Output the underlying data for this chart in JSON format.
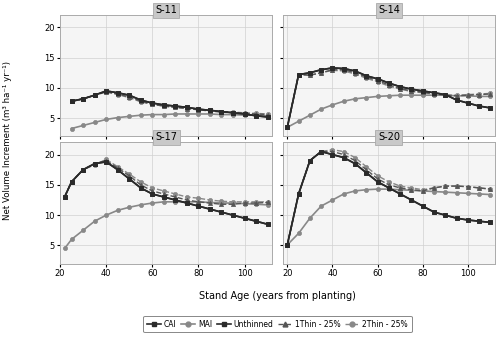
{
  "panels": [
    "S-11",
    "S-14",
    "S-17",
    "S-20"
  ],
  "ylabel": "Net Volume Increment (m³ ha⁻¹ yr⁻¹)",
  "xlabel": "Stand Age (years from planting)",
  "x_ticks": [
    20,
    40,
    60,
    80,
    100
  ],
  "y_ticks": [
    5,
    10,
    15,
    20
  ],
  "background_color": "#ffffff",
  "panel_header_color": "#c8c8c8",
  "S-11": {
    "ylim": [
      2,
      22
    ],
    "xlim": [
      22,
      112
    ],
    "CAI": {
      "x": [
        25,
        30,
        35,
        40,
        45,
        50,
        55,
        60,
        65,
        70,
        75,
        80,
        85,
        90,
        95,
        100,
        105,
        110
      ],
      "y": [
        7.8,
        8.2,
        8.8,
        9.5,
        9.2,
        8.8,
        8.0,
        7.5,
        7.2,
        7.0,
        6.8,
        6.5,
        6.3,
        6.1,
        5.9,
        5.7,
        5.4,
        5.2
      ]
    },
    "MAI": {
      "x": [
        25,
        30,
        35,
        40,
        45,
        50,
        55,
        60,
        65,
        70,
        75,
        80,
        85,
        90,
        95,
        100,
        105,
        110
      ],
      "y": [
        3.3,
        3.8,
        4.3,
        4.8,
        5.1,
        5.3,
        5.5,
        5.6,
        5.6,
        5.7,
        5.7,
        5.7,
        5.7,
        5.6,
        5.6,
        5.5,
        5.5,
        5.4
      ]
    },
    "Unthinned": {
      "x": [
        25,
        30,
        35,
        40,
        45,
        50,
        55,
        60,
        65,
        70,
        75,
        80,
        85,
        90,
        95,
        100,
        105,
        110
      ],
      "y": [
        7.8,
        8.2,
        8.8,
        9.5,
        9.2,
        8.8,
        8.0,
        7.5,
        7.2,
        7.0,
        6.8,
        6.5,
        6.3,
        6.1,
        5.9,
        5.7,
        5.4,
        5.2
      ]
    },
    "1Thin": {
      "x": [
        25,
        30,
        35,
        40,
        45,
        50,
        55,
        60,
        65,
        70,
        75,
        80,
        85,
        90,
        95,
        100,
        105,
        110
      ],
      "y": [
        7.8,
        8.2,
        8.8,
        9.4,
        9.0,
        8.5,
        7.8,
        7.3,
        7.0,
        6.8,
        6.6,
        6.4,
        6.2,
        6.0,
        5.9,
        5.8,
        5.7,
        5.6
      ]
    },
    "2Thin": {
      "x": [
        25,
        30,
        35,
        40,
        45,
        50,
        55,
        60,
        65,
        70,
        75,
        80,
        85,
        90,
        95,
        100,
        105,
        110
      ],
      "y": [
        7.8,
        8.2,
        8.8,
        9.3,
        8.9,
        8.4,
        7.7,
        7.3,
        7.0,
        6.8,
        6.6,
        6.4,
        6.2,
        6.1,
        6.0,
        5.9,
        5.8,
        5.7
      ]
    }
  },
  "S-14": {
    "ylim": [
      2,
      22
    ],
    "xlim": [
      18,
      112
    ],
    "CAI": {
      "x": [
        20,
        25,
        30,
        35,
        40,
        45,
        50,
        55,
        60,
        65,
        70,
        75,
        80,
        85,
        90,
        95,
        100,
        105,
        110
      ],
      "y": [
        3.5,
        12.2,
        12.5,
        13.0,
        13.3,
        13.2,
        12.8,
        12.0,
        11.5,
        10.8,
        10.2,
        9.8,
        9.5,
        9.2,
        8.9,
        8.0,
        7.5,
        7.0,
        6.7
      ]
    },
    "MAI": {
      "x": [
        20,
        25,
        30,
        35,
        40,
        45,
        50,
        55,
        60,
        65,
        70,
        75,
        80,
        85,
        90,
        95,
        100,
        105,
        110
      ],
      "y": [
        3.5,
        4.5,
        5.5,
        6.5,
        7.2,
        7.8,
        8.2,
        8.4,
        8.6,
        8.7,
        8.8,
        8.8,
        8.8,
        8.8,
        8.8,
        8.7,
        8.7,
        8.6,
        8.6
      ]
    },
    "Unthinned": {
      "x": [
        20,
        25,
        30,
        35,
        40,
        45,
        50,
        55,
        60,
        65,
        70,
        75,
        80,
        85,
        90,
        95,
        100,
        105,
        110
      ],
      "y": [
        3.5,
        12.2,
        12.5,
        13.0,
        13.3,
        13.2,
        12.8,
        12.0,
        11.5,
        10.8,
        10.2,
        9.8,
        9.5,
        9.2,
        8.9,
        8.0,
        7.5,
        7.0,
        6.7
      ]
    },
    "1Thin": {
      "x": [
        20,
        25,
        30,
        35,
        40,
        45,
        50,
        55,
        60,
        65,
        70,
        75,
        80,
        85,
        90,
        95,
        100,
        105,
        110
      ],
      "y": [
        3.5,
        12.2,
        12.1,
        12.5,
        13.0,
        13.0,
        12.5,
        11.8,
        11.2,
        10.5,
        9.9,
        9.5,
        9.3,
        9.0,
        8.8,
        8.7,
        8.8,
        8.9,
        9.0
      ]
    },
    "2Thin": {
      "x": [
        20,
        25,
        30,
        35,
        40,
        45,
        50,
        55,
        60,
        65,
        70,
        75,
        80,
        85,
        90,
        95,
        100,
        105,
        110
      ],
      "y": [
        3.5,
        12.2,
        12.1,
        12.5,
        12.9,
        12.8,
        12.3,
        11.6,
        11.0,
        10.3,
        9.8,
        9.4,
        9.2,
        9.0,
        8.8,
        8.8,
        8.9,
        9.0,
        9.1
      ]
    }
  },
  "S-17": {
    "ylim": [
      2,
      22
    ],
    "xlim": [
      20,
      112
    ],
    "CAI": {
      "x": [
        22,
        25,
        30,
        35,
        40,
        45,
        50,
        55,
        60,
        65,
        70,
        75,
        80,
        85,
        90,
        95,
        100,
        105,
        110
      ],
      "y": [
        13.0,
        15.5,
        17.5,
        18.5,
        18.8,
        17.5,
        16.0,
        14.5,
        13.5,
        13.0,
        12.5,
        12.0,
        11.5,
        11.0,
        10.5,
        10.0,
        9.5,
        9.0,
        8.5
      ]
    },
    "MAI": {
      "x": [
        22,
        25,
        30,
        35,
        40,
        45,
        50,
        55,
        60,
        65,
        70,
        75,
        80,
        85,
        90,
        95,
        100,
        105,
        110
      ],
      "y": [
        4.5,
        6.0,
        7.5,
        9.0,
        10.0,
        10.8,
        11.3,
        11.7,
        12.0,
        12.2,
        12.2,
        12.2,
        12.2,
        12.1,
        12.0,
        12.0,
        11.9,
        11.8,
        11.7
      ]
    },
    "Unthinned": {
      "x": [
        22,
        25,
        30,
        35,
        40,
        45,
        50,
        55,
        60,
        65,
        70,
        75,
        80,
        85,
        90,
        95,
        100,
        105,
        110
      ],
      "y": [
        13.0,
        15.5,
        17.5,
        18.5,
        18.8,
        17.5,
        16.0,
        14.5,
        13.5,
        13.0,
        12.5,
        12.0,
        11.5,
        11.0,
        10.5,
        10.0,
        9.5,
        9.0,
        8.5
      ]
    },
    "1Thin": {
      "x": [
        22,
        25,
        30,
        35,
        40,
        45,
        50,
        55,
        60,
        65,
        70,
        75,
        80,
        85,
        90,
        95,
        100,
        105,
        110
      ],
      "y": [
        13.0,
        15.5,
        17.5,
        18.5,
        19.0,
        17.8,
        16.5,
        15.0,
        14.0,
        13.5,
        13.0,
        12.5,
        12.2,
        12.0,
        11.8,
        11.8,
        12.0,
        12.0,
        12.1
      ]
    },
    "2Thin": {
      "x": [
        22,
        25,
        30,
        35,
        40,
        45,
        50,
        55,
        60,
        65,
        70,
        75,
        80,
        85,
        90,
        95,
        100,
        105,
        110
      ],
      "y": [
        13.0,
        15.5,
        17.5,
        18.3,
        19.2,
        18.0,
        16.8,
        15.5,
        14.5,
        14.0,
        13.5,
        13.0,
        12.8,
        12.5,
        12.3,
        12.2,
        12.2,
        12.2,
        12.2
      ]
    }
  },
  "S-20": {
    "ylim": [
      2,
      22
    ],
    "xlim": [
      18,
      112
    ],
    "CAI": {
      "x": [
        20,
        25,
        30,
        35,
        40,
        45,
        50,
        55,
        60,
        65,
        70,
        75,
        80,
        85,
        90,
        95,
        100,
        105,
        110
      ],
      "y": [
        5.1,
        13.5,
        19.0,
        20.5,
        20.0,
        19.5,
        18.5,
        17.0,
        15.5,
        14.5,
        13.5,
        12.5,
        11.5,
        10.5,
        10.0,
        9.5,
        9.2,
        9.0,
        8.8
      ]
    },
    "MAI": {
      "x": [
        20,
        25,
        30,
        35,
        40,
        45,
        50,
        55,
        60,
        65,
        70,
        75,
        80,
        85,
        90,
        95,
        100,
        105,
        110
      ],
      "y": [
        5.1,
        7.0,
        9.5,
        11.5,
        12.5,
        13.5,
        14.0,
        14.2,
        14.3,
        14.3,
        14.2,
        14.1,
        14.0,
        13.9,
        13.8,
        13.7,
        13.6,
        13.5,
        13.4
      ]
    },
    "Unthinned": {
      "x": [
        20,
        25,
        30,
        35,
        40,
        45,
        50,
        55,
        60,
        65,
        70,
        75,
        80,
        85,
        90,
        95,
        100,
        105,
        110
      ],
      "y": [
        5.1,
        13.5,
        19.0,
        20.5,
        20.0,
        19.5,
        18.5,
        17.0,
        15.5,
        14.5,
        13.5,
        12.5,
        11.5,
        10.5,
        10.0,
        9.5,
        9.2,
        9.0,
        8.8
      ]
    },
    "1Thin": {
      "x": [
        20,
        25,
        30,
        35,
        40,
        45,
        50,
        55,
        60,
        65,
        70,
        75,
        80,
        85,
        90,
        95,
        100,
        105,
        110
      ],
      "y": [
        5.1,
        13.5,
        19.0,
        20.5,
        20.5,
        20.0,
        19.0,
        17.5,
        16.0,
        15.0,
        14.5,
        14.2,
        14.0,
        14.5,
        14.8,
        14.8,
        14.7,
        14.5,
        14.3
      ]
    },
    "2Thin": {
      "x": [
        20,
        25,
        30,
        35,
        40,
        45,
        50,
        55,
        60,
        65,
        70,
        75,
        80,
        85,
        90,
        95,
        100,
        105,
        110
      ],
      "y": [
        5.1,
        13.5,
        19.0,
        20.5,
        20.8,
        20.5,
        19.5,
        18.0,
        16.5,
        15.5,
        14.8,
        14.5,
        14.2,
        14.5,
        14.8,
        14.8,
        14.7,
        14.5,
        14.3
      ]
    }
  },
  "line_styles": {
    "CAI": {
      "color": "#2a2a2a",
      "linestyle": "-",
      "marker": "s",
      "markersize": 3.0,
      "linewidth": 1.2,
      "markerfacecolor": "#2a2a2a"
    },
    "MAI": {
      "color": "#888888",
      "linestyle": "-",
      "marker": "o",
      "markersize": 3.0,
      "linewidth": 1.2,
      "markerfacecolor": "#888888"
    },
    "Unthinned": {
      "color": "#2a2a2a",
      "linestyle": "-",
      "marker": "s",
      "markersize": 3.0,
      "linewidth": 1.2,
      "markerfacecolor": "#2a2a2a"
    },
    "1Thin": {
      "color": "#555555",
      "linestyle": "--",
      "marker": "^",
      "markersize": 3.0,
      "linewidth": 1.0,
      "markerfacecolor": "#555555"
    },
    "2Thin": {
      "color": "#888888",
      "linestyle": "--",
      "marker": "o",
      "markersize": 3.0,
      "linewidth": 1.0,
      "markerfacecolor": "#888888"
    }
  },
  "legend_labels": [
    "CAI",
    "MAI",
    "Unthinned",
    "1Thin - 25%",
    "2Thin - 25%"
  ]
}
